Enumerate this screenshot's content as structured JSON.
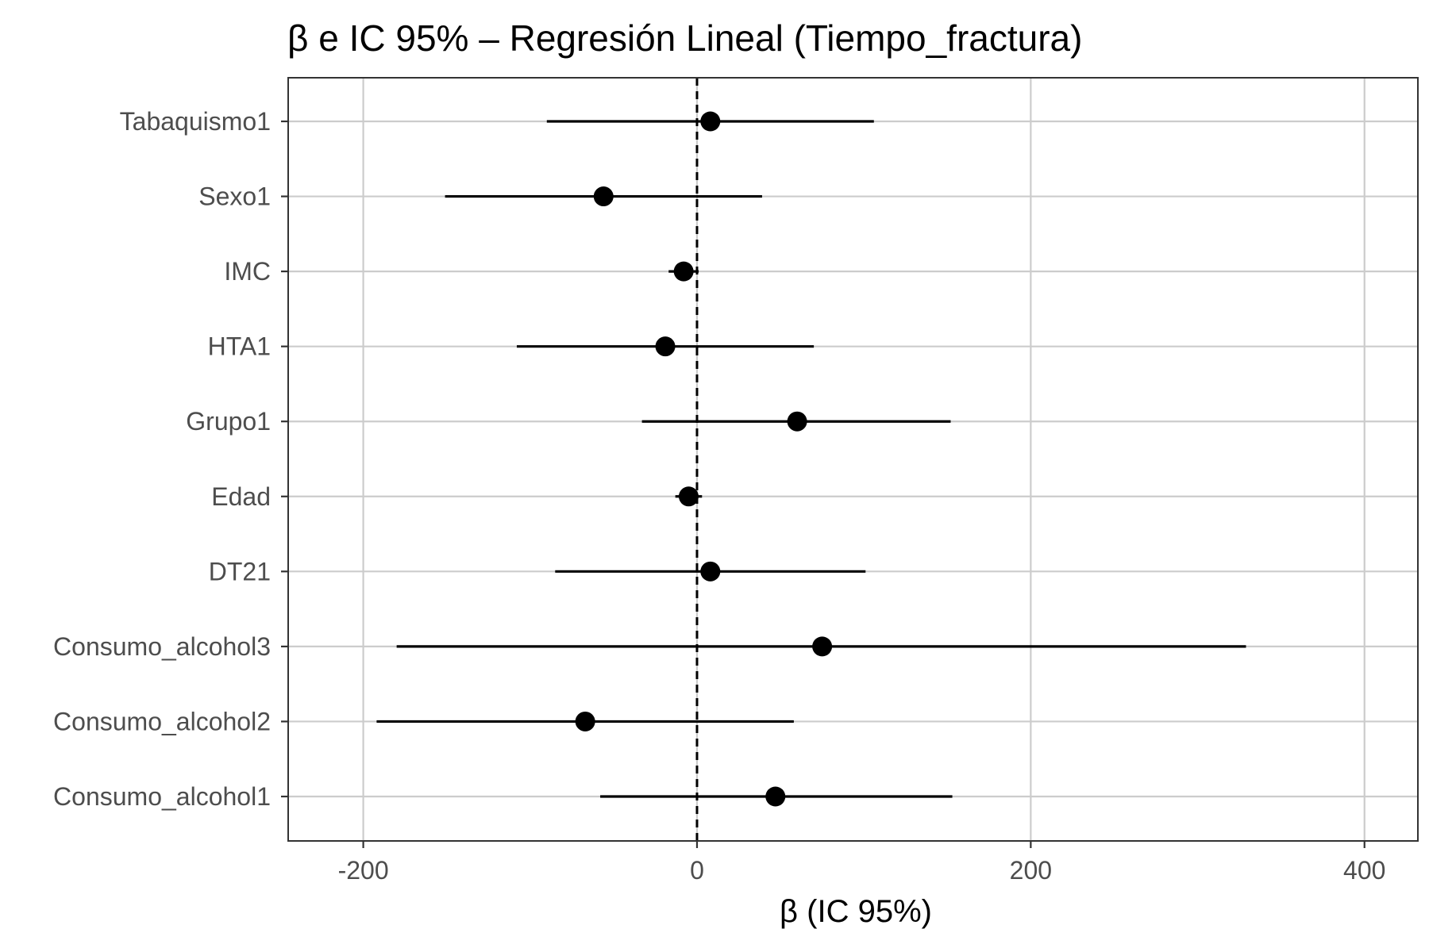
{
  "chart_data": {
    "type": "scatter",
    "subtype": "forest-plot",
    "title": "β e IC 95% – Regresión Lineal (Tiempo_fractura)",
    "xlabel": "β (IC 95%)",
    "ylabel": "",
    "xlim": [
      -245,
      432
    ],
    "x_ticks": [
      -200,
      0,
      200,
      400
    ],
    "x_tick_labels": [
      "-200",
      "0",
      "200",
      "400"
    ],
    "reference_line": 0,
    "grid": true,
    "colors": {
      "point": "#000000",
      "errorbar": "#000000",
      "grid": "#cccccc",
      "reference": "#000000"
    },
    "terms": [
      {
        "label": "Tabaquismo1",
        "estimate": 8,
        "lower": -90,
        "upper": 106
      },
      {
        "label": "Sexo1",
        "estimate": -56,
        "lower": -151,
        "upper": 39
      },
      {
        "label": "IMC",
        "estimate": -8,
        "lower": -17,
        "upper": 1
      },
      {
        "label": "HTA1",
        "estimate": -19,
        "lower": -108,
        "upper": 70
      },
      {
        "label": "Grupo1",
        "estimate": 60,
        "lower": -33,
        "upper": 152
      },
      {
        "label": "Edad",
        "estimate": -5,
        "lower": -13,
        "upper": 3
      },
      {
        "label": "DT21",
        "estimate": 8,
        "lower": -85,
        "upper": 101
      },
      {
        "label": "Consumo_alcohol3",
        "estimate": 75,
        "lower": -180,
        "upper": 329
      },
      {
        "label": "Consumo_alcohol2",
        "estimate": -67,
        "lower": -192,
        "upper": 58
      },
      {
        "label": "Consumo_alcohol1",
        "estimate": 47,
        "lower": -58,
        "upper": 153
      }
    ]
  }
}
